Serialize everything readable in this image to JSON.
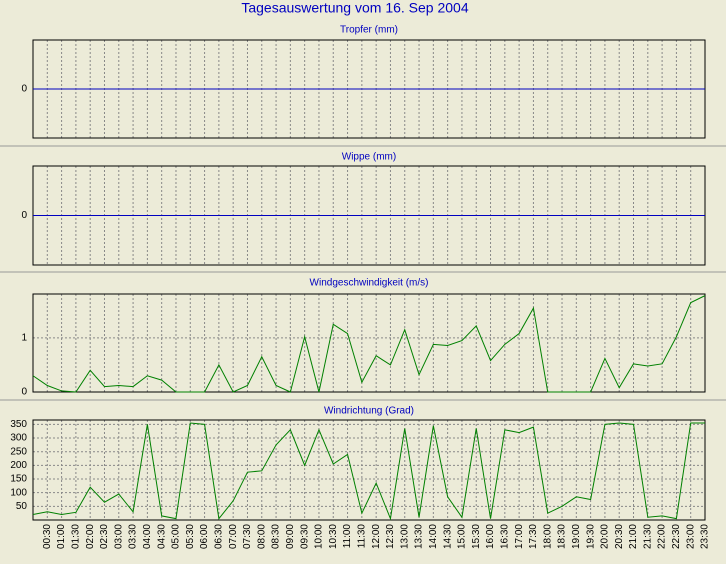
{
  "title": "Tagesauswertung vom 16. Sep 2004",
  "chart_data": [
    {
      "type": "line",
      "title": "Tropfer (mm)",
      "ylim": [
        -1,
        1
      ],
      "yticks": [
        0
      ],
      "grid": true,
      "series": [
        {
          "color": "#0000c0",
          "values": [
            0,
            0,
            0,
            0,
            0,
            0,
            0,
            0,
            0,
            0,
            0,
            0,
            0,
            0,
            0,
            0,
            0,
            0,
            0,
            0,
            0,
            0,
            0,
            0,
            0,
            0,
            0,
            0,
            0,
            0,
            0,
            0,
            0,
            0,
            0,
            0,
            0,
            0,
            0,
            0,
            0,
            0,
            0,
            0,
            0,
            0,
            0,
            0
          ]
        }
      ]
    },
    {
      "type": "line",
      "title": "Wippe (mm)",
      "ylim": [
        -1,
        1
      ],
      "yticks": [
        0
      ],
      "grid": true,
      "series": [
        {
          "color": "#0000c0",
          "values": [
            0,
            0,
            0,
            0,
            0,
            0,
            0,
            0,
            0,
            0,
            0,
            0,
            0,
            0,
            0,
            0,
            0,
            0,
            0,
            0,
            0,
            0,
            0,
            0,
            0,
            0,
            0,
            0,
            0,
            0,
            0,
            0,
            0,
            0,
            0,
            0,
            0,
            0,
            0,
            0,
            0,
            0,
            0,
            0,
            0,
            0,
            0,
            0
          ]
        }
      ]
    },
    {
      "type": "line",
      "title": "Windgeschwindigkeit (m/s)",
      "ylim": [
        0,
        1.81
      ],
      "yticks": [
        0,
        1
      ],
      "grid": true,
      "series": [
        {
          "color": "#008000",
          "values": [
            0.3,
            0.12,
            0.02,
            0,
            0.4,
            0.1,
            0.12,
            0.1,
            0.3,
            0.22,
            0,
            0,
            0,
            0.5,
            0,
            0.12,
            0.65,
            0.12,
            0,
            1.02,
            0,
            1.25,
            1.08,
            0.18,
            0.67,
            0.5,
            1.15,
            0.32,
            0.88,
            0.86,
            0.95,
            1.22,
            0.58,
            0.88,
            1.08,
            1.55,
            0,
            0,
            0,
            0,
            0.62,
            0.08,
            0.52,
            0.48,
            0.52,
            1.02,
            1.65,
            1.78
          ]
        }
      ]
    },
    {
      "type": "line",
      "title": "Windrichtung (Grad)",
      "ylim": [
        0,
        366
      ],
      "yticks": [
        50,
        100,
        150,
        200,
        250,
        300,
        350
      ],
      "grid": true,
      "categories": [
        null,
        "00:30",
        "01:00",
        "01:30",
        "02:00",
        "02:30",
        "03:00",
        "03:30",
        "04:00",
        "04:30",
        "05:00",
        "05:30",
        "06:00",
        "06:30",
        "07:00",
        "07:30",
        "08:00",
        "08:30",
        "09:00",
        "09:30",
        "10:00",
        "10:30",
        "11:00",
        "11:30",
        "12:00",
        "12:30",
        "13:00",
        "13:30",
        "14:00",
        "14:30",
        "15:00",
        "15:30",
        "16:00",
        "16:30",
        "17:00",
        "17:30",
        "18:00",
        "18:30",
        "19:00",
        "19:30",
        "20:00",
        "20:30",
        "21:00",
        "21:30",
        "22:00",
        "22:30",
        "23:00",
        "23:30"
      ],
      "series": [
        {
          "color": "#008000",
          "values": [
            20,
            30,
            20,
            28,
            120,
            65,
            95,
            30,
            350,
            15,
            5,
            355,
            350,
            5,
            70,
            175,
            180,
            275,
            330,
            200,
            330,
            205,
            240,
            25,
            135,
            5,
            335,
            10,
            345,
            85,
            10,
            335,
            5,
            330,
            320,
            340,
            25,
            50,
            85,
            75,
            350,
            355,
            350,
            10,
            15,
            5,
            355,
            355
          ]
        }
      ]
    }
  ]
}
